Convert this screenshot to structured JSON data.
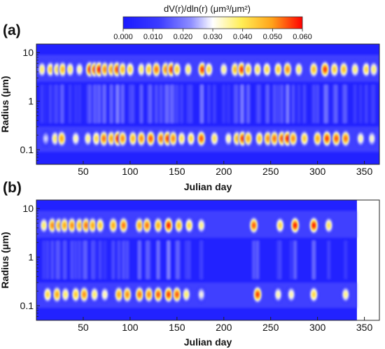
{
  "colorbar": {
    "title": "dV(r)/dln(r) (μm³/μm²)",
    "ticks": [
      "0.000",
      "0.010",
      "0.020",
      "0.030",
      "0.040",
      "0.050",
      "0.060"
    ],
    "range": [
      0,
      0.06
    ],
    "colors": [
      "#1a1aff",
      "#3b3bff",
      "#8f8fff",
      "#ffffff",
      "#ffee55",
      "#ffa31a",
      "#ff0000"
    ]
  },
  "chart_data": [
    {
      "type": "heatmap",
      "panel_label": "(a)",
      "xlabel": "Julian day",
      "ylabel": "Radius (μm)",
      "x_ticks": [
        "50",
        "100",
        "150",
        "200",
        "250",
        "300",
        "350"
      ],
      "y_ticks": [
        "10",
        "1",
        "0.1"
      ],
      "xlim": [
        0,
        366
      ],
      "ylim": [
        0.05,
        15
      ],
      "y_scale": "log",
      "data_days": [
        0,
        366
      ],
      "coarse_modes": [
        {
          "day": 6,
          "value": 0.04
        },
        {
          "day": 15,
          "value": 0.045
        },
        {
          "day": 22,
          "value": 0.042
        },
        {
          "day": 28,
          "value": 0.048
        },
        {
          "day": 36,
          "value": 0.04
        },
        {
          "day": 46,
          "value": 0.036
        },
        {
          "day": 57,
          "value": 0.058
        },
        {
          "day": 62,
          "value": 0.056
        },
        {
          "day": 67,
          "value": 0.06
        },
        {
          "day": 73,
          "value": 0.052
        },
        {
          "day": 80,
          "value": 0.05
        },
        {
          "day": 86,
          "value": 0.057
        },
        {
          "day": 92,
          "value": 0.048
        },
        {
          "day": 100,
          "value": 0.044
        },
        {
          "day": 112,
          "value": 0.04
        },
        {
          "day": 120,
          "value": 0.046
        },
        {
          "day": 128,
          "value": 0.054
        },
        {
          "day": 138,
          "value": 0.052
        },
        {
          "day": 144,
          "value": 0.058
        },
        {
          "day": 150,
          "value": 0.046
        },
        {
          "day": 162,
          "value": 0.04
        },
        {
          "day": 177,
          "value": 0.058
        },
        {
          "day": 184,
          "value": 0.044
        },
        {
          "day": 200,
          "value": 0.038
        },
        {
          "day": 212,
          "value": 0.048
        },
        {
          "day": 219,
          "value": 0.058
        },
        {
          "day": 226,
          "value": 0.046
        },
        {
          "day": 236,
          "value": 0.042
        },
        {
          "day": 246,
          "value": 0.044
        },
        {
          "day": 258,
          "value": 0.046
        },
        {
          "day": 268,
          "value": 0.052
        },
        {
          "day": 280,
          "value": 0.04
        },
        {
          "day": 296,
          "value": 0.048
        },
        {
          "day": 308,
          "value": 0.058
        },
        {
          "day": 318,
          "value": 0.046
        },
        {
          "day": 328,
          "value": 0.048
        },
        {
          "day": 340,
          "value": 0.04
        },
        {
          "day": 352,
          "value": 0.044
        },
        {
          "day": 360,
          "value": 0.04
        }
      ],
      "fine_modes": [
        {
          "day": 10,
          "value": 0.028
        },
        {
          "day": 20,
          "value": 0.04
        },
        {
          "day": 27,
          "value": 0.05
        },
        {
          "day": 42,
          "value": 0.036
        },
        {
          "day": 55,
          "value": 0.038
        },
        {
          "day": 64,
          "value": 0.044
        },
        {
          "day": 72,
          "value": 0.054
        },
        {
          "day": 80,
          "value": 0.05
        },
        {
          "day": 87,
          "value": 0.06
        },
        {
          "day": 92,
          "value": 0.052
        },
        {
          "day": 103,
          "value": 0.048
        },
        {
          "day": 112,
          "value": 0.052
        },
        {
          "day": 122,
          "value": 0.056
        },
        {
          "day": 133,
          "value": 0.054
        },
        {
          "day": 140,
          "value": 0.058
        },
        {
          "day": 146,
          "value": 0.052
        },
        {
          "day": 155,
          "value": 0.042
        },
        {
          "day": 165,
          "value": 0.044
        },
        {
          "day": 176,
          "value": 0.056
        },
        {
          "day": 190,
          "value": 0.042
        },
        {
          "day": 205,
          "value": 0.036
        },
        {
          "day": 214,
          "value": 0.048
        },
        {
          "day": 220,
          "value": 0.058
        },
        {
          "day": 226,
          "value": 0.05
        },
        {
          "day": 238,
          "value": 0.046
        },
        {
          "day": 247,
          "value": 0.052
        },
        {
          "day": 254,
          "value": 0.054
        },
        {
          "day": 262,
          "value": 0.056
        },
        {
          "day": 268,
          "value": 0.06
        },
        {
          "day": 274,
          "value": 0.052
        },
        {
          "day": 286,
          "value": 0.046
        },
        {
          "day": 300,
          "value": 0.05
        },
        {
          "day": 310,
          "value": 0.058
        },
        {
          "day": 320,
          "value": 0.056
        },
        {
          "day": 330,
          "value": 0.054
        },
        {
          "day": 346,
          "value": 0.036
        },
        {
          "day": 358,
          "value": 0.034
        }
      ]
    },
    {
      "type": "heatmap",
      "panel_label": "(b)",
      "xlabel": "Julian day",
      "ylabel": "Radius (μm)",
      "x_ticks": [
        "50",
        "100",
        "150",
        "200",
        "250",
        "300",
        "350"
      ],
      "y_ticks": [
        "10",
        "1",
        "0.1"
      ],
      "xlim": [
        0,
        366
      ],
      "ylim": [
        0.05,
        15
      ],
      "y_scale": "log",
      "data_days": [
        0,
        342
      ],
      "coarse_modes": [
        {
          "day": 8,
          "value": 0.04
        },
        {
          "day": 17,
          "value": 0.052
        },
        {
          "day": 24,
          "value": 0.048
        },
        {
          "day": 30,
          "value": 0.05
        },
        {
          "day": 38,
          "value": 0.052
        },
        {
          "day": 46,
          "value": 0.048
        },
        {
          "day": 53,
          "value": 0.054
        },
        {
          "day": 60,
          "value": 0.05
        },
        {
          "day": 68,
          "value": 0.046
        },
        {
          "day": 82,
          "value": 0.05
        },
        {
          "day": 93,
          "value": 0.054
        },
        {
          "day": 110,
          "value": 0.05
        },
        {
          "day": 118,
          "value": 0.054
        },
        {
          "day": 130,
          "value": 0.05
        },
        {
          "day": 141,
          "value": 0.06
        },
        {
          "day": 152,
          "value": 0.048
        },
        {
          "day": 163,
          "value": 0.044
        },
        {
          "day": 176,
          "value": 0.038
        },
        {
          "day": 232,
          "value": 0.056
        },
        {
          "day": 260,
          "value": 0.044
        },
        {
          "day": 276,
          "value": 0.06
        },
        {
          "day": 296,
          "value": 0.06
        },
        {
          "day": 312,
          "value": 0.042
        }
      ],
      "fine_modes": [
        {
          "day": 12,
          "value": 0.044
        },
        {
          "day": 22,
          "value": 0.05
        },
        {
          "day": 31,
          "value": 0.04
        },
        {
          "day": 42,
          "value": 0.046
        },
        {
          "day": 51,
          "value": 0.052
        },
        {
          "day": 62,
          "value": 0.04
        },
        {
          "day": 73,
          "value": 0.036
        },
        {
          "day": 88,
          "value": 0.05
        },
        {
          "day": 97,
          "value": 0.052
        },
        {
          "day": 110,
          "value": 0.054
        },
        {
          "day": 120,
          "value": 0.052
        },
        {
          "day": 130,
          "value": 0.056
        },
        {
          "day": 141,
          "value": 0.058
        },
        {
          "day": 150,
          "value": 0.056
        },
        {
          "day": 160,
          "value": 0.04
        },
        {
          "day": 176,
          "value": 0.032
        },
        {
          "day": 236,
          "value": 0.058
        },
        {
          "day": 258,
          "value": 0.036
        },
        {
          "day": 272,
          "value": 0.036
        },
        {
          "day": 296,
          "value": 0.044
        },
        {
          "day": 330,
          "value": 0.038
        }
      ]
    }
  ]
}
